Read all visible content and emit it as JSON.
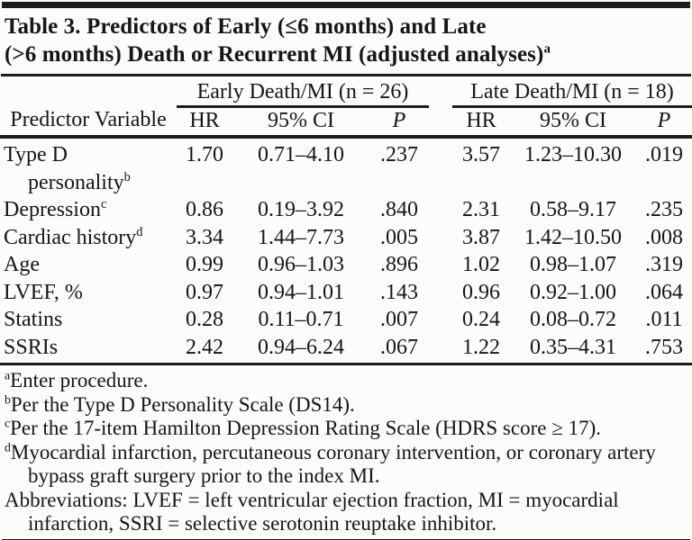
{
  "title": {
    "line1": "Table 3. Predictors of Early (≤6 months) and Late",
    "line2": "(>6 months) Death or Recurrent MI (adjusted analyses)",
    "marker": "a"
  },
  "table": {
    "groups": [
      {
        "label": "Early Death/MI (n = 26)"
      },
      {
        "label": "Late Death/MI (n = 18)"
      }
    ],
    "headers": [
      "Predictor Variable",
      "HR",
      "95% CI",
      "P",
      "HR",
      "95% CI",
      "P"
    ],
    "rows": [
      {
        "predictor": "Type D",
        "predictor2": "personality",
        "marker": "b",
        "early_hr": "1.70",
        "early_ci": "0.71–4.10",
        "early_p": ".237",
        "late_hr": "3.57",
        "late_ci": "1.23–10.30",
        "late_p": ".019"
      },
      {
        "predictor": "Depression",
        "marker": "c",
        "early_hr": "0.86",
        "early_ci": "0.19–3.92",
        "early_p": ".840",
        "late_hr": "2.31",
        "late_ci": "0.58–9.17",
        "late_p": ".235"
      },
      {
        "predictor": "Cardiac history",
        "marker": "d",
        "early_hr": "3.34",
        "early_ci": "1.44–7.73",
        "early_p": ".005",
        "late_hr": "3.87",
        "late_ci": "1.42–10.50",
        "late_p": ".008"
      },
      {
        "predictor": "Age",
        "marker": "",
        "early_hr": "0.99",
        "early_ci": "0.96–1.03",
        "early_p": ".896",
        "late_hr": "1.02",
        "late_ci": "0.98–1.07",
        "late_p": ".319"
      },
      {
        "predictor": "LVEF, %",
        "marker": "",
        "early_hr": "0.97",
        "early_ci": "0.94–1.01",
        "early_p": ".143",
        "late_hr": "0.96",
        "late_ci": "0.92–1.00",
        "late_p": ".064"
      },
      {
        "predictor": "Statins",
        "marker": "",
        "early_hr": "0.28",
        "early_ci": "0.11–0.71",
        "early_p": ".007",
        "late_hr": "0.24",
        "late_ci": "0.08–0.72",
        "late_p": ".011"
      },
      {
        "predictor": "SSRIs",
        "marker": "",
        "early_hr": "2.42",
        "early_ci": "0.94–6.24",
        "early_p": ".067",
        "late_hr": "1.22",
        "late_ci": "0.35–4.31",
        "late_p": ".753"
      }
    ]
  },
  "footnotes": [
    {
      "marker": "a",
      "text": "Enter procedure."
    },
    {
      "marker": "b",
      "text": "Per the Type D Personality Scale (DS14)."
    },
    {
      "marker": "c",
      "text": "Per the 17-item Hamilton Depression Rating Scale (HDRS score ≥ 17)."
    },
    {
      "marker": "d",
      "text": "Myocardial infarction, percutaneous coronary intervention, or coronary artery bypass graft surgery prior to the index MI."
    },
    {
      "marker": "",
      "text": "Abbreviations: LVEF = left ventricular ejection fraction, MI = myocardial infarction, SSRI = selective serotonin reuptake inhibitor."
    }
  ]
}
